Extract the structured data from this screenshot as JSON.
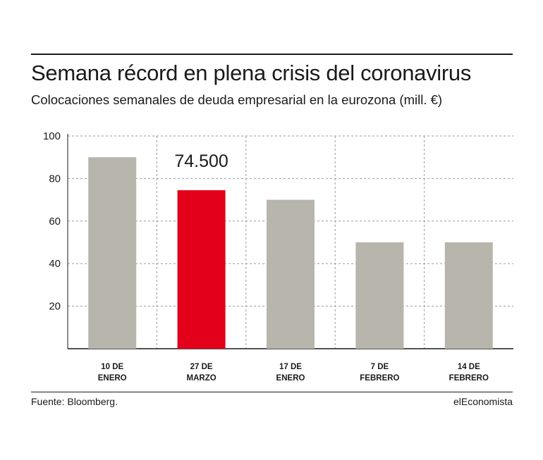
{
  "header": {
    "title": "Semana récord en plena crisis del coronavirus",
    "subtitle": "Colocaciones semanales de deuda empresarial en la eurozona (mill. €)"
  },
  "footer": {
    "source": "Fuente: Bloomberg.",
    "brand": "elEconomista"
  },
  "colors": {
    "bar_default": "#b8b5ad",
    "bar_highlight": "#e2001a",
    "grid": "#9a9a9a",
    "axis": "#1a1a1a"
  },
  "chart_data": {
    "type": "bar",
    "title": "Semana récord en plena crisis del coronavirus",
    "subtitle": "Colocaciones semanales de deuda empresarial en la eurozona (mill. €)",
    "categories": [
      [
        "10 DE",
        "ENERO"
      ],
      [
        "27 DE",
        "MARZO"
      ],
      [
        "17 DE",
        "ENERO"
      ],
      [
        "7 DE",
        "FEBRERO"
      ],
      [
        "14 DE",
        "FEBRERO"
      ]
    ],
    "values": [
      90,
      74.5,
      70,
      50,
      50
    ],
    "highlight_index": 1,
    "data_labels": [
      {
        "index": 1,
        "text": "74.500"
      }
    ],
    "ylim": [
      0,
      100
    ],
    "yticks": [
      20,
      40,
      60,
      80,
      100
    ],
    "ytick_labels": [
      "20",
      "40",
      "60",
      "80",
      "100"
    ],
    "grid": true,
    "xlabel": "",
    "ylabel": ""
  }
}
